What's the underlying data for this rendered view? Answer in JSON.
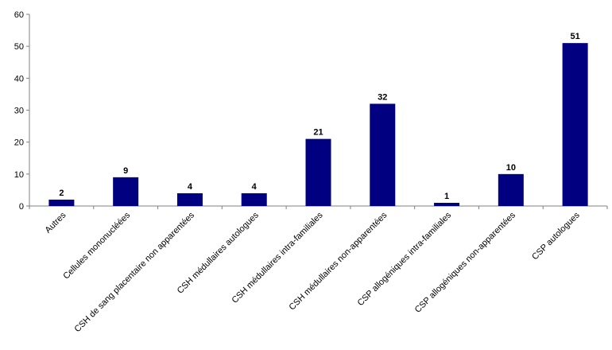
{
  "chart_data": {
    "type": "bar",
    "categories": [
      "Autres",
      "Cellules mononucléées",
      "CSH de sang placentaire non apparentées",
      "CSH médullaires autologues",
      "CSH médullaires intra-familiales",
      "CSH médullaires non-apparentées",
      "CSP allogéniques intra-familiales",
      "CSP allogéniques non-apparentées",
      "CSP  autologues"
    ],
    "values": [
      2,
      9,
      4,
      4,
      21,
      32,
      1,
      10,
      51
    ],
    "title": "",
    "xlabel": "",
    "ylabel": "",
    "ylim": [
      0,
      60
    ],
    "yticks": [
      0,
      10,
      20,
      30,
      40,
      50,
      60
    ],
    "grid": false,
    "legend": "none",
    "bar_color": "#000080"
  }
}
